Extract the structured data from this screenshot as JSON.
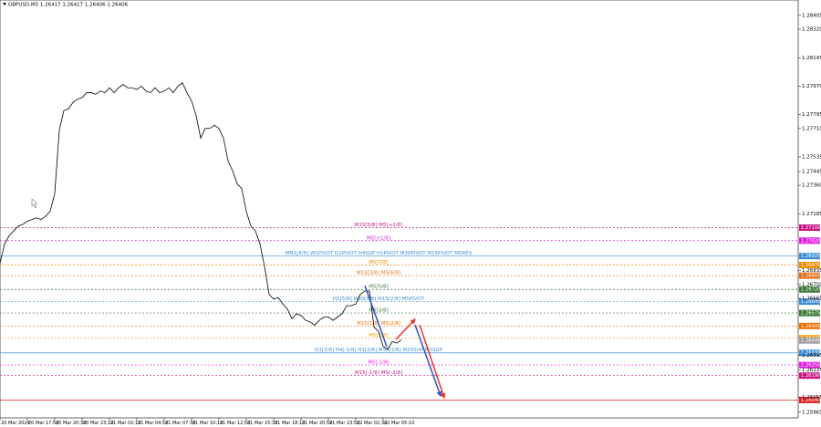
{
  "chart_data": {
    "type": "line",
    "title": "GBPUSD,M5  1.26417 1.26417 1.26406 1.26406",
    "xlim": [
      0,
      175
    ],
    "xticks": [
      {
        "value": 0,
        "label": "20 Mar 2024"
      },
      {
        "value": 6,
        "label": "20 Mar 17:50"
      },
      {
        "value": 12,
        "label": "20 Mar 20:30"
      },
      {
        "value": 18,
        "label": "20 Mar 23:10"
      },
      {
        "value": 24,
        "label": "21 Mar 02:10"
      },
      {
        "value": 30,
        "label": "21 Mar 04:50"
      },
      {
        "value": 36,
        "label": "21 Mar 07:30"
      },
      {
        "value": 42,
        "label": "21 Mar 10:10"
      },
      {
        "value": 48,
        "label": "21 Mar 12:50"
      },
      {
        "value": 54,
        "label": "21 Mar 15:30"
      },
      {
        "value": 60,
        "label": "21 Mar 18:10"
      },
      {
        "value": 66,
        "label": "21 Mar 20:50"
      },
      {
        "value": 72,
        "label": "21 Mar 23:50"
      },
      {
        "value": 78,
        "label": "22 Mar 02:30"
      },
      {
        "value": 84,
        "label": "22 Mar 05:10"
      }
    ],
    "ylim": [
      1.2593,
      1.285
    ],
    "yticks": [
      1.28405,
      {
        "value": 1.2832,
        "label": "1.28320"
      },
      1.28145,
      {
        "value": 1.2797,
        "label": "1.27970"
      },
      1.27795,
      {
        "value": 1.2771,
        "label": "1.27710"
      },
      1.27535,
      1.27445,
      {
        "value": 1.2736,
        "label": "1.27360"
      },
      1.27185,
      1.26835,
      {
        "value": 1.2675,
        "label": "1.26750"
      },
      1.26665,
      1.26315,
      1.26225,
      1.26055,
      1.25965
    ],
    "series": [
      {
        "name": "GBPUSD,M5",
        "color": "#000000",
        "values": [
          1.2688,
          1.27,
          1.2705,
          1.2708,
          1.2711,
          1.2712,
          1.2714,
          1.2715,
          1.2716,
          1.2715,
          1.2717,
          1.272,
          1.2731,
          1.277,
          1.2782,
          1.2783,
          1.2787,
          1.2789,
          1.279,
          1.2793,
          1.2793,
          1.2792,
          1.2794,
          1.2793,
          1.2796,
          1.2793,
          1.2796,
          1.2798,
          1.2796,
          1.2796,
          1.2795,
          1.2797,
          1.2794,
          1.2793,
          1.2796,
          1.2793,
          1.2794,
          1.2796,
          1.2793,
          1.2797,
          1.2799,
          1.2793,
          1.2788,
          1.2779,
          1.2765,
          1.2771,
          1.2771,
          1.2773,
          1.2771,
          1.2765,
          1.2751,
          1.2745,
          1.2737,
          1.2734,
          1.272,
          1.2711,
          1.2708,
          1.27,
          1.2686,
          1.2669,
          1.2666,
          1.2667,
          1.2663,
          1.266,
          1.2654,
          1.2657,
          1.2656,
          1.2653,
          1.2652,
          1.265,
          1.2653,
          1.2655,
          1.2655,
          1.2653,
          1.2655,
          1.2657,
          1.2662,
          1.2662,
          1.2663,
          1.2669,
          1.2671,
          1.2671,
          1.2649,
          1.2646,
          1.2637,
          1.2635,
          1.264,
          1.2639,
          1.2641
        ]
      }
    ],
    "levels": [
      {
        "label": "M15[5/8] M5[+2/8]",
        "price": {
          "value": 1.271,
          "label": "1.27100"
        },
        "color": "#c71585",
        "dash": true
      },
      {
        "label": "M5[+1/8]",
        "price": {
          "value": 1.2702,
          "label": "1.27020"
        },
        "color": "#e020e0",
        "dash": true
      },
      {
        "label": "MN1[8/8] W1PIVOT D1PIVOT H4SUP H1PIVOT M30PIVOT M15PIVOT M5RES",
        "price": 1.26925,
        "color": "#3c8fd6",
        "dash": false
      },
      {
        "label": "M5[7/8]",
        "price": {
          "value": 1.2687,
          "label": "1.26870"
        },
        "color": "#f08c00",
        "dash": true
      },
      {
        "label": "M15[3/8] M5[6/8]",
        "price": 1.26805,
        "color": "#e07020",
        "dash": true
      },
      {
        "label": "M5[5/8]",
        "price": {
          "value": 1.2672,
          "label": "1.26720"
        },
        "color": "#3a7a3a",
        "dash": true
      },
      {
        "label": "H1[5/8] M30[5/8] M15[2/8] M5PIVOT",
        "price": 1.26645,
        "color": "#3c8fd6",
        "dash": true
      },
      {
        "label": "M5[3/8]",
        "price": 1.26575,
        "color": "#3a7a3a",
        "dash": true
      },
      {
        "label": "M15[1/8] M5[2/8]",
        "price": 1.26495,
        "color": "#f07000",
        "dash": true
      },
      {
        "label": "M5[1/8]",
        "price": {
          "value": 1.2642,
          "label": "1.26420"
        },
        "color": "#f0a000",
        "dash": true
      },
      {
        "label": "D1[3/8] H4[-1/8] H1[2/8] M30[2/8] M15SUP M5SUP",
        "price": {
          "value": 1.2633,
          "label": "1.26330"
        },
        "color": "#3c8fd6",
        "dash": false
      },
      {
        "label": "M5[-1/8]",
        "price": 1.26255,
        "color": "#e020e0",
        "dash": true
      },
      {
        "label": "M15[-1/8] M5[-2/8]",
        "price": {
          "value": 1.2619,
          "label": "1.26190"
        },
        "color": "#c71585",
        "dash": true
      },
      {
        "price": {
          "value": 1.2604,
          "label": "1.26040"
        },
        "color": "#e02020",
        "dash": false
      }
    ],
    "current_price": 1.26406
  }
}
